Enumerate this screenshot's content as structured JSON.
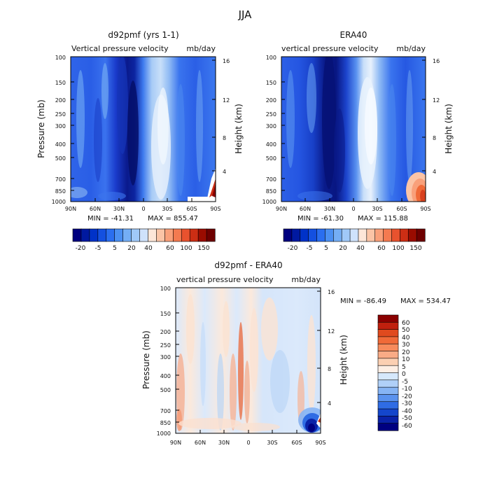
{
  "figure": {
    "title": "JJA"
  },
  "chart_data": [
    {
      "type": "heatmap",
      "title": "d92pmf (yrs 1-1)",
      "subtitle_left": "Vertical pressure velocity",
      "units": "mb/day",
      "x_ticks": [
        "90N",
        "60N",
        "30N",
        "0",
        "30S",
        "60S",
        "90S"
      ],
      "y_label": "Pressure (mb)",
      "y_ticks": [
        "100",
        "150",
        "200",
        "250",
        "300",
        "400",
        "500",
        "700",
        "850",
        "1000"
      ],
      "y2_label": "Height (km)",
      "y2_ticks": [
        "16",
        "12",
        "8",
        "4"
      ],
      "min_label": "MIN = -41.31",
      "max_label": "MAX = 855.47",
      "colorbar": {
        "labels": [
          "-20",
          "-5",
          "5",
          "20",
          "40",
          "60",
          "100",
          "150"
        ],
        "colors": [
          "#00007f",
          "#0019a0",
          "#0032c8",
          "#1450e0",
          "#2a6ef0",
          "#4a8ff2",
          "#74aef5",
          "#a0c9f8",
          "#cfe2fb",
          "#fde6d8",
          "#fbc4a6",
          "#f9a07a",
          "#f47a50",
          "#e8522e",
          "#cc2e14",
          "#9a0c00",
          "#6e0000"
        ]
      }
    },
    {
      "type": "heatmap",
      "title": "ERA40",
      "subtitle_left": "vertical pressure velocity",
      "units": "mb/day",
      "x_ticks": [
        "90N",
        "60N",
        "30N",
        "0",
        "30S",
        "60S",
        "90S"
      ],
      "y_ticks": [
        "100",
        "150",
        "200",
        "250",
        "300",
        "400",
        "500",
        "700",
        "850",
        "1000"
      ],
      "y2_label": "Height (km)",
      "y2_ticks": [
        "16",
        "12",
        "8",
        "4"
      ],
      "min_label": "MIN = -61.30",
      "max_label": "MAX = 115.88",
      "colorbar": {
        "labels": [
          "-20",
          "-5",
          "5",
          "20",
          "40",
          "60",
          "100",
          "150"
        ]
      }
    },
    {
      "type": "heatmap",
      "title": "d92pmf - ERA40",
      "subtitle_left": "vertical pressure velocity",
      "units": "mb/day",
      "x_ticks": [
        "90N",
        "60N",
        "30N",
        "0",
        "30S",
        "60S",
        "90S"
      ],
      "y_label": "Pressure (mb)",
      "y_ticks": [
        "100",
        "150",
        "200",
        "250",
        "300",
        "400",
        "500",
        "700",
        "850",
        "1000"
      ],
      "y2_label": "Height (km)",
      "y2_ticks": [
        "16",
        "12",
        "8",
        "4"
      ],
      "min_label": "MIN = -86.49",
      "max_label": "MAX = 534.47",
      "colorbar": {
        "labels": [
          "60",
          "50",
          "40",
          "30",
          "20",
          "10",
          "5",
          "0",
          "-5",
          "-10",
          "-20",
          "-30",
          "-40",
          "-50",
          "-60"
        ],
        "colors": [
          "#8b0000",
          "#c0200e",
          "#e04a1e",
          "#f06a38",
          "#f78b5c",
          "#f9ab86",
          "#fbcfb2",
          "#fdeee4",
          "#d6e8fb",
          "#b0d0f8",
          "#86b4f4",
          "#5a92ee",
          "#2f6ce4",
          "#1446cc",
          "#0a22a8",
          "#000080"
        ]
      }
    }
  ]
}
